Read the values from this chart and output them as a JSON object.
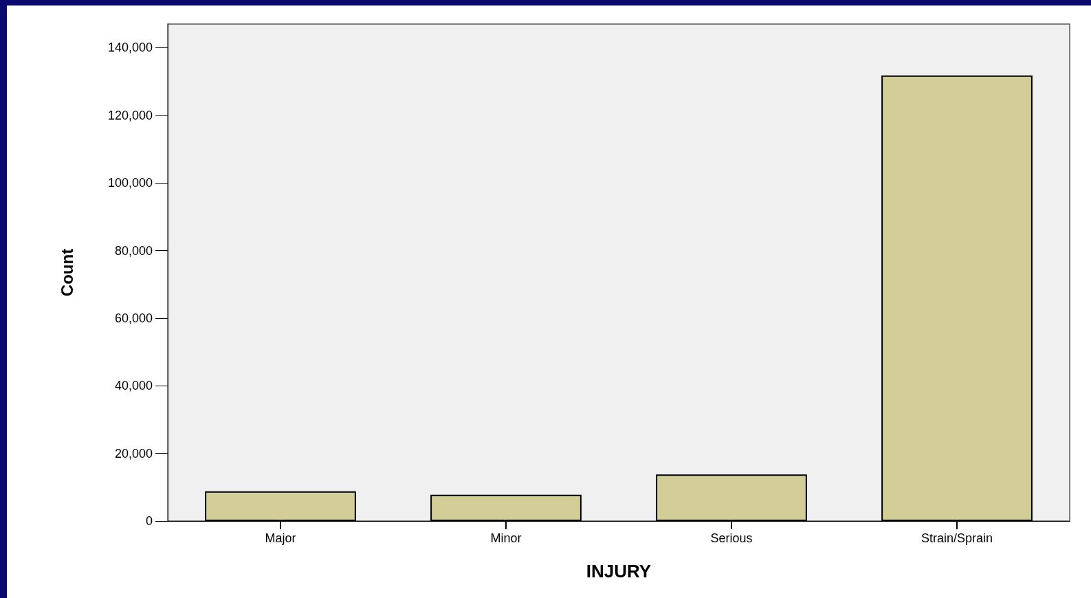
{
  "chart_data": {
    "type": "bar",
    "xlabel": "INJURY",
    "ylabel": "Count",
    "categories": [
      "Major",
      "Minor",
      "Serious",
      "Strain/Sprain"
    ],
    "values": [
      8800,
      7800,
      13800,
      131800
    ],
    "color": "#d3ce97",
    "ylim": [
      0,
      147000
    ],
    "yticks": [
      {
        "value": 0,
        "label": "0"
      },
      {
        "value": 20000,
        "label": "20,000"
      },
      {
        "value": 40000,
        "label": "40,000"
      },
      {
        "value": 60000,
        "label": "60,000"
      },
      {
        "value": 80000,
        "label": "80,000"
      },
      {
        "value": 100000,
        "label": "100,000"
      },
      {
        "value": 120000,
        "label": "120,000"
      },
      {
        "value": 140000,
        "label": "140,000"
      }
    ],
    "grid": false
  }
}
